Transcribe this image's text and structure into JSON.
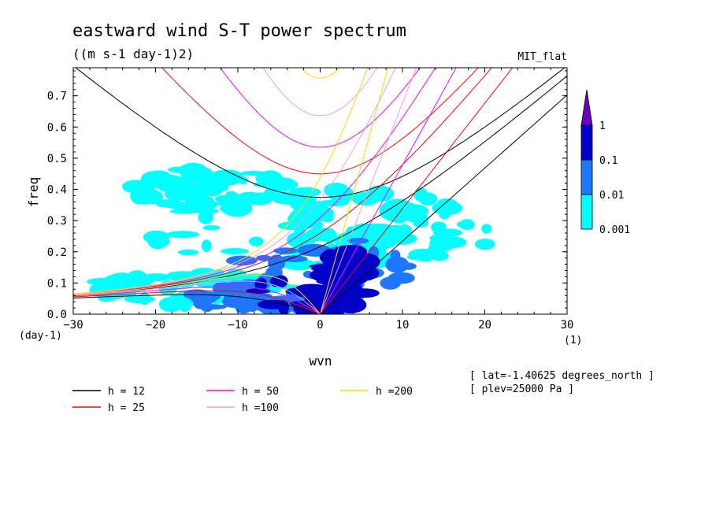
{
  "chart_data": {
    "type": "heatmap",
    "title": "eastward wind S-T power spectrum",
    "units": "((m s-1 day-1)2)",
    "model_label": "MIT_flat",
    "xlabel": "wvn",
    "ylabel": "freq",
    "x_unit": "(1)",
    "y_unit": "(day-1)",
    "xlim": [
      -30,
      30
    ],
    "ylim": [
      0,
      0.79
    ],
    "x_ticks": [
      "-30",
      "-20",
      "-10",
      "0",
      "10",
      "20",
      "30"
    ],
    "y_ticks": [
      "0.0",
      "0.1",
      "0.2",
      "0.3",
      "0.4",
      "0.5",
      "0.6",
      "0.7"
    ],
    "colorbar": {
      "levels": [
        "0.001",
        "0.01",
        "0.1",
        "1"
      ],
      "colors": [
        "#00ffff",
        "#1e78ff",
        "#0000c8",
        "#6a00c0"
      ]
    },
    "power_regions": [
      {
        "level": "0.001",
        "center": [
          0,
          0.27
        ],
        "spread": [
          22,
          0.13
        ]
      },
      {
        "level": "0.001",
        "center": [
          -13,
          0.4
        ],
        "spread": [
          10,
          0.07
        ]
      },
      {
        "level": "0.001",
        "center": [
          8,
          0.28
        ],
        "spread": [
          12,
          0.12
        ]
      },
      {
        "level": "0.001",
        "center": [
          -16,
          0.08
        ],
        "spread": [
          13,
          0.05
        ]
      },
      {
        "level": "0.01",
        "center": [
          0,
          0.15
        ],
        "spread": [
          11,
          0.1
        ]
      },
      {
        "level": "0.01",
        "center": [
          -8,
          0.05
        ],
        "spread": [
          8,
          0.04
        ]
      },
      {
        "level": "0.1",
        "center": [
          -1,
          0.07
        ],
        "spread": [
          7,
          0.06
        ]
      },
      {
        "level": "0.1",
        "center": [
          3,
          0.15
        ],
        "spread": [
          3,
          0.06
        ]
      }
    ],
    "dispersion_curves": [
      {
        "name": "h = 12",
        "h": 12,
        "color": "#000000"
      },
      {
        "name": "h = 25",
        "h": 25,
        "color": "#ff0000"
      },
      {
        "name": "h = 50",
        "h": 50,
        "color": "#ff00ff"
      },
      {
        "name": "h =100",
        "h": 100,
        "color": "#e8a0e8"
      },
      {
        "name": "h =200",
        "h": 200,
        "color": "#ffd700"
      }
    ],
    "annotations": [
      "[ lat=-1.40625 degrees_north ]",
      "[ plev=25000 Pa ]"
    ]
  }
}
